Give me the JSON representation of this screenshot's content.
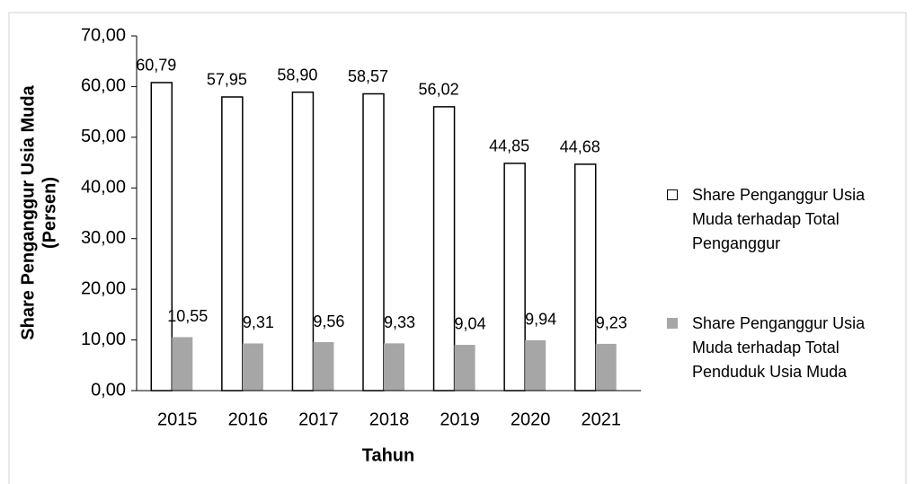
{
  "chart_data": {
    "type": "bar",
    "categories": [
      "2015",
      "2016",
      "2017",
      "2018",
      "2019",
      "2020",
      "2021"
    ],
    "series": [
      {
        "name": "Share Penganggur Usia Muda terhadap Total Penganggur",
        "color": "#ffffff",
        "values": [
          60.79,
          57.95,
          58.9,
          58.57,
          56.02,
          44.85,
          44.68
        ],
        "value_labels": [
          "60,79",
          "57,95",
          "58,90",
          "58,57",
          "56,02",
          "44,85",
          "44,68"
        ]
      },
      {
        "name": "Share Penganggur Usia Muda terhadap Total Penduduk Usia Muda",
        "color": "#a6a6a6",
        "values": [
          10.55,
          9.31,
          9.56,
          9.33,
          9.04,
          9.94,
          9.23
        ],
        "value_labels": [
          "10,55",
          "9,31",
          "9,56",
          "9,33",
          "9,04",
          "9,94",
          "9,23"
        ]
      }
    ],
    "ylim": [
      0,
      70
    ],
    "yticks": [
      {
        "value": 0,
        "label": "0,00"
      },
      {
        "value": 10,
        "label": "10,00"
      },
      {
        "value": 20,
        "label": "20,00"
      },
      {
        "value": 30,
        "label": "30,00"
      },
      {
        "value": 40,
        "label": "40,00"
      },
      {
        "value": 50,
        "label": "50,00"
      },
      {
        "value": 60,
        "label": "60,00"
      },
      {
        "value": 70,
        "label": "70,00"
      }
    ],
    "y_label": [
      "Share Penganggur Usia Muda",
      "(Persen)"
    ],
    "x_label": "Tahun",
    "legend": "right"
  }
}
